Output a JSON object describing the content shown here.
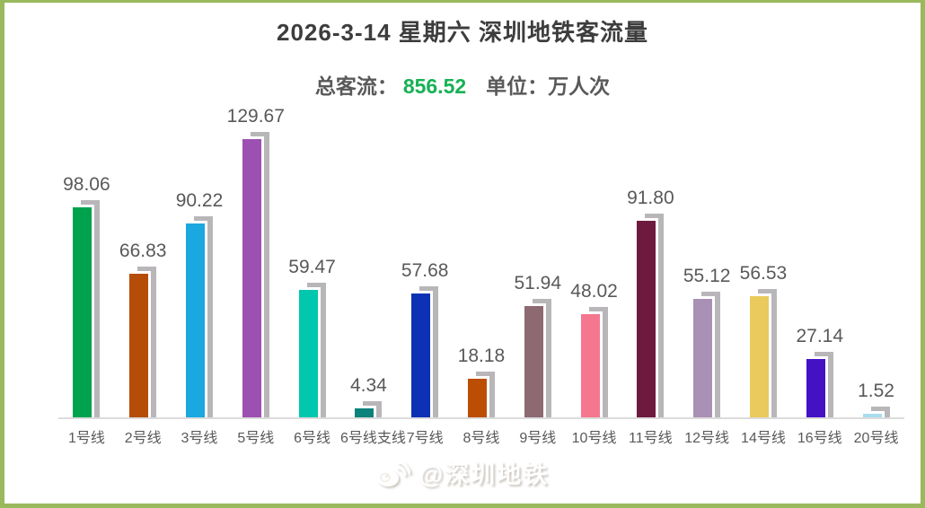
{
  "header": {
    "title": "2026-3-14 星期六  深圳地铁客流量",
    "total_label": "总客流：",
    "total_value": "856.52",
    "unit_label": "单位：万人次",
    "accent_color": "#17b155"
  },
  "watermark": {
    "icon": "weibo-icon",
    "text": "@深圳地铁"
  },
  "chart_data": {
    "type": "bar",
    "title": "2026-3-14 星期六 深圳地铁客流量",
    "subtitle": "总客流：856.52 单位：万人次",
    "total": 856.52,
    "unit": "万人次",
    "categories": [
      "1号线",
      "2号线",
      "3号线",
      "5号线",
      "6号线",
      "6号线支线",
      "7号线",
      "8号线",
      "9号线",
      "10号线",
      "11号线",
      "12号线",
      "14号线",
      "16号线",
      "20号线"
    ],
    "values": [
      98.06,
      66.83,
      90.22,
      129.67,
      59.47,
      4.34,
      57.68,
      18.18,
      51.94,
      48.02,
      91.8,
      55.12,
      56.53,
      27.14,
      1.52
    ],
    "value_labels": [
      "98.06",
      "66.83",
      "90.22",
      "129.67",
      "59.47",
      "4.34",
      "57.68",
      "18.18",
      "51.94",
      "48.02",
      "91.80",
      "55.12",
      "56.53",
      "27.14",
      "1.52"
    ],
    "bar_colors": [
      "#00a24e",
      "#b54d08",
      "#1ba7e0",
      "#9c50b2",
      "#00c7ae",
      "#0b827b",
      "#0c31b5",
      "#bc4d05",
      "#8d6a72",
      "#f5778f",
      "#6e1a3e",
      "#a891b4",
      "#eaca5c",
      "#4511c5",
      "#a9dcef"
    ],
    "shadow_color": "#b9b6ba",
    "axis_color": "#dcdcdc",
    "label_color": "#595959",
    "ylim": [
      0,
      140
    ],
    "grid": false,
    "legend": false,
    "bar_value_position": "above"
  },
  "frame": {
    "border_color": "#9ab85c"
  }
}
